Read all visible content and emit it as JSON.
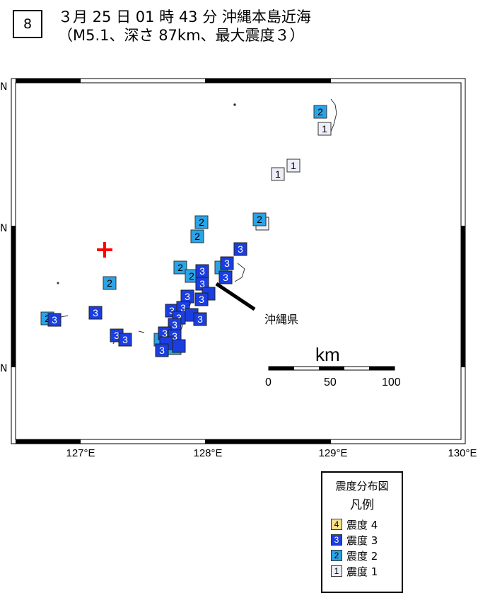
{
  "header": {
    "number": "8",
    "line1": "３月 25 日 01 時 43 分 沖縄本島近海",
    "line2": "（M5.1、深さ 87km、最大震度３）"
  },
  "map": {
    "lat_labels": [
      "N",
      "N",
      "N"
    ],
    "lon_labels": [
      "127°E",
      "128°E",
      "129°E",
      "130°E"
    ],
    "region_label": "沖縄県",
    "scale_title": "km",
    "scale_ticks": [
      "0",
      "50",
      "100"
    ]
  },
  "legend": {
    "title1": "震度分布図",
    "title2": "凡例",
    "items": [
      {
        "level": "4",
        "label": "震度 4",
        "color": "#ffe08a",
        "text_color": "#000000"
      },
      {
        "level": "3",
        "label": "震度 3",
        "color": "#1a3ee0",
        "text_color": "#ffffff"
      },
      {
        "level": "2",
        "label": "震度 2",
        "color": "#2aa4e8",
        "text_color": "#000000"
      },
      {
        "level": "1",
        "label": "震度 1",
        "color": "#eeeef8",
        "text_color": "#000000"
      }
    ]
  },
  "colors": {
    "epicenter": "#ff0000",
    "intensity_3": "#1a3ee0",
    "intensity_2": "#2aa4e8",
    "intensity_1": "#eeeef8"
  },
  "markers": [
    {
      "level": "1",
      "icon": "intensity-1-marker"
    },
    {
      "level": "2",
      "icon": "intensity-2-marker"
    },
    {
      "level": "3",
      "icon": "intensity-3-marker"
    }
  ]
}
